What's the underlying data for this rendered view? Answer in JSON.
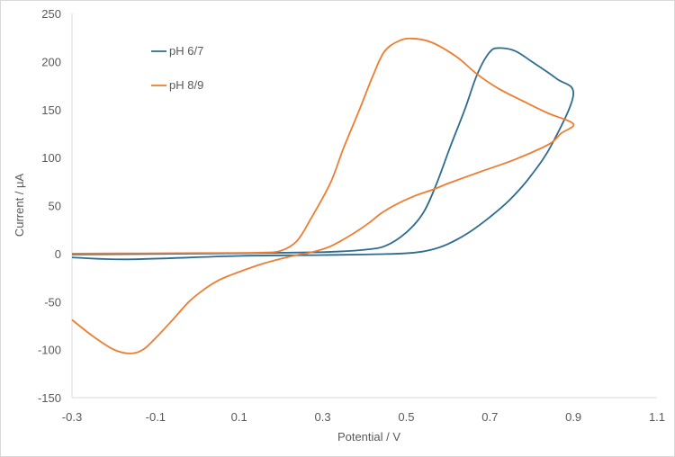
{
  "chart_data": {
    "type": "line",
    "title": "",
    "xlabel": "Potential / V",
    "ylabel": "Current / µA",
    "xlim": [
      -0.3,
      1.1
    ],
    "ylim": [
      -150,
      250
    ],
    "xticks": [
      -0.3,
      -0.1,
      0.1,
      0.3,
      0.5,
      0.7,
      0.9,
      1.1
    ],
    "xtick_labels": [
      "-0.3",
      "-0.1",
      "0.1",
      "0.3",
      "0.5",
      "0.7",
      "0.9",
      "1.1"
    ],
    "yticks": [
      -150,
      -100,
      -50,
      0,
      50,
      100,
      150,
      200,
      250
    ],
    "ytick_labels": [
      "-150",
      "-100",
      "-50",
      "0",
      "50",
      "100",
      "150",
      "200",
      "250"
    ],
    "grid": false,
    "legend_placement": "top-left",
    "series": [
      {
        "name": "pH 6/7",
        "color": "#2e6b8f",
        "points": [
          [
            -0.3,
            -4
          ],
          [
            -0.17,
            -6
          ],
          [
            0.1,
            -2.5
          ],
          [
            0.3,
            -1.5
          ],
          [
            0.45,
            -0.5
          ],
          [
            0.52,
            1
          ],
          [
            0.56,
            4
          ],
          [
            0.6,
            10
          ],
          [
            0.65,
            22
          ],
          [
            0.7,
            38
          ],
          [
            0.75,
            57
          ],
          [
            0.8,
            82
          ],
          [
            0.85,
            115
          ],
          [
            0.9,
            166
          ],
          [
            0.86,
            182
          ],
          [
            0.8,
            200
          ],
          [
            0.76,
            211
          ],
          [
            0.723,
            214
          ],
          [
            0.7,
            210
          ],
          [
            0.67,
            187
          ],
          [
            0.64,
            150
          ],
          [
            0.605,
            111
          ],
          [
            0.57,
            70
          ],
          [
            0.54,
            42
          ],
          [
            0.5,
            22
          ],
          [
            0.45,
            8
          ],
          [
            0.4,
            4
          ],
          [
            0.3,
            1.5
          ],
          [
            0.1,
            0.3
          ],
          [
            -0.3,
            -1
          ]
        ]
      },
      {
        "name": "pH 8/9",
        "color": "#ed7d31",
        "points": [
          [
            -0.3,
            0
          ],
          [
            0,
            0.5
          ],
          [
            0.15,
            1
          ],
          [
            0.2,
            3
          ],
          [
            0.238,
            13
          ],
          [
            0.27,
            35
          ],
          [
            0.318,
            73
          ],
          [
            0.35,
            110
          ],
          [
            0.389,
            151
          ],
          [
            0.42,
            185
          ],
          [
            0.447,
            210
          ],
          [
            0.48,
            221
          ],
          [
            0.512,
            224
          ],
          [
            0.56,
            220
          ],
          [
            0.62,
            205
          ],
          [
            0.669,
            187
          ],
          [
            0.72,
            172
          ],
          [
            0.783,
            158
          ],
          [
            0.84,
            146
          ],
          [
            0.9,
            135
          ],
          [
            0.87,
            125
          ],
          [
            0.842,
            114
          ],
          [
            0.76,
            98
          ],
          [
            0.676,
            85
          ],
          [
            0.6,
            73
          ],
          [
            0.566,
            67
          ],
          [
            0.52,
            60
          ],
          [
            0.475,
            51
          ],
          [
            0.44,
            42
          ],
          [
            0.411,
            32
          ],
          [
            0.37,
            20
          ],
          [
            0.318,
            7.5
          ],
          [
            0.27,
            1
          ],
          [
            0.232,
            -2
          ],
          [
            0.16,
            -10
          ],
          [
            0.088,
            -21
          ],
          [
            0.05,
            -28
          ],
          [
            0.017,
            -37
          ],
          [
            -0.02,
            -50
          ],
          [
            -0.057,
            -68
          ],
          [
            -0.1,
            -88
          ],
          [
            -0.13,
            -100
          ],
          [
            -0.16,
            -104
          ],
          [
            -0.2,
            -100
          ],
          [
            -0.25,
            -86
          ],
          [
            -0.3,
            -69
          ]
        ]
      }
    ]
  }
}
